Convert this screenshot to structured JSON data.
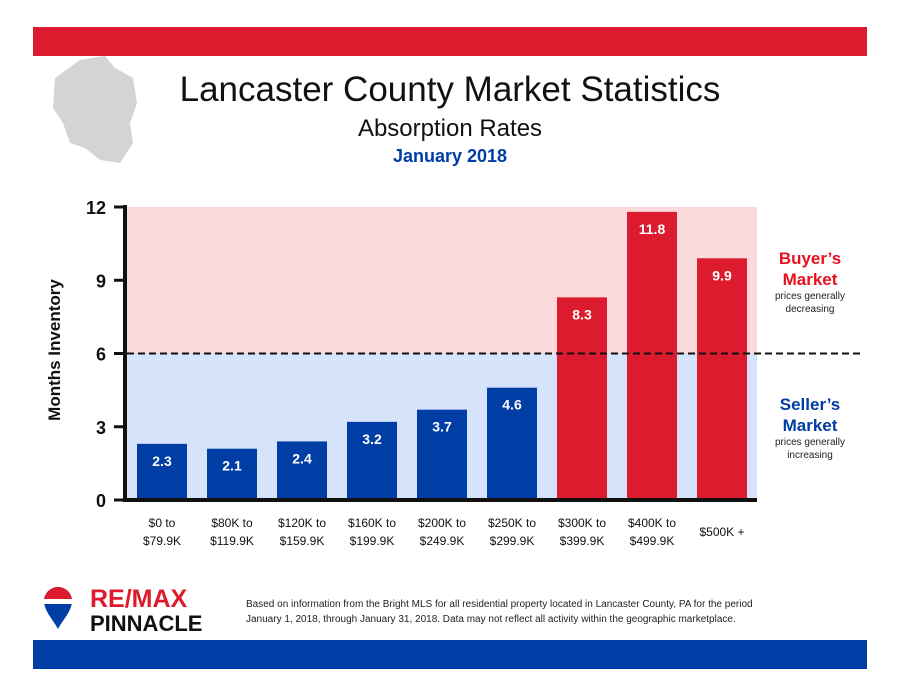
{
  "header": {
    "title": "Lancaster County Market Statistics",
    "subtitle": "Absorption Rates",
    "period": "January 2018"
  },
  "colors": {
    "red": "#dc1c2e",
    "blue": "#003da5",
    "buyer_zone": "#f9d9dc",
    "seller_zone": "#d6e4fb"
  },
  "zones": {
    "buyer": {
      "title_line1": "Buyer’s",
      "title_line2": "Market",
      "desc_line1": "prices generally",
      "desc_line2": "decreasing"
    },
    "seller": {
      "title_line1": "Seller’s",
      "title_line2": "Market",
      "desc_line1": "prices generally",
      "desc_line2": "increasing"
    }
  },
  "chart_data": {
    "type": "bar",
    "ylabel": "Months Inventory",
    "ylim": [
      0,
      12
    ],
    "yticks": [
      0,
      3,
      6,
      9,
      12
    ],
    "threshold": 6,
    "categories": [
      [
        "$0 to",
        "$79.9K"
      ],
      [
        "$80K to",
        "$119.9K"
      ],
      [
        "$120K to",
        "$159.9K"
      ],
      [
        "$160K to",
        "$199.9K"
      ],
      [
        "$200K to",
        "$249.9K"
      ],
      [
        "$250K to",
        "$299.9K"
      ],
      [
        "$300K to",
        "$399.9K"
      ],
      [
        "$400K to",
        "$499.9K"
      ],
      [
        "$500K +",
        ""
      ]
    ],
    "values": [
      2.3,
      2.1,
      2.4,
      3.2,
      3.7,
      4.6,
      8.3,
      11.8,
      9.9
    ]
  },
  "logo": {
    "brand_line1": "RE/MAX",
    "brand_line2": "PINNACLE",
    "balloon_text": "RE/MAX"
  },
  "footnote": {
    "line1": "Based on information from the Bright MLS for all residential property located in Lancaster County, PA for the period",
    "line2": "January 1, 2018, through January 31, 2018.  Data may not reflect all activity within the geographic marketplace."
  }
}
